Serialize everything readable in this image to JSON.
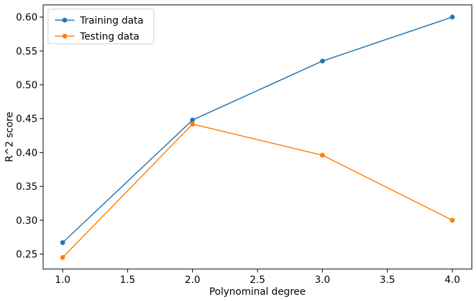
{
  "chart_data": {
    "type": "line",
    "title": "",
    "xlabel": "Polynominal degree",
    "ylabel": "R^2 score",
    "x": [
      1.0,
      2.0,
      3.0,
      4.0
    ],
    "xlim": [
      0.85,
      4.15
    ],
    "ylim": [
      0.228,
      0.618
    ],
    "xticks": [
      1.0,
      1.5,
      2.0,
      2.5,
      3.0,
      3.5,
      4.0
    ],
    "xtick_labels": [
      "1.0",
      "1.5",
      "2.0",
      "2.5",
      "3.0",
      "3.5",
      "4.0"
    ],
    "yticks": [
      0.25,
      0.3,
      0.35,
      0.4,
      0.45,
      0.5,
      0.55,
      0.6
    ],
    "ytick_labels": [
      "0.25",
      "0.30",
      "0.35",
      "0.40",
      "0.45",
      "0.50",
      "0.55",
      "0.60"
    ],
    "grid": false,
    "legend_position": "top-left",
    "series": [
      {
        "name": "Training data",
        "color": "#1f77b4",
        "marker": "circle",
        "values": [
          0.267,
          0.448,
          0.535,
          0.6
        ]
      },
      {
        "name": "Testing data",
        "color": "#ff7f0e",
        "marker": "circle",
        "values": [
          0.245,
          0.442,
          0.396,
          0.3
        ]
      }
    ]
  }
}
